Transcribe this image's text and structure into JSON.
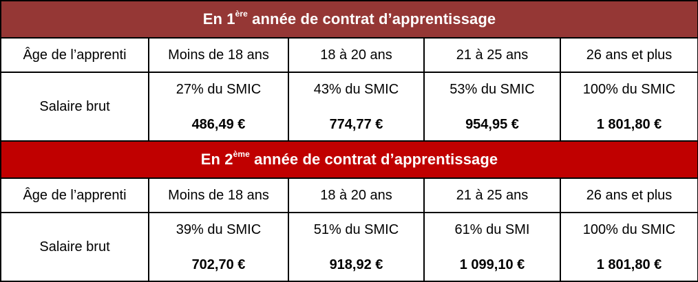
{
  "sections": [
    {
      "title_prefix": "En 1",
      "title_sup": "ère",
      "title_suffix": " année de contrat d’apprentissage",
      "age_label": "Âge de l’apprenti",
      "age_groups": [
        "Moins de 18 ans",
        "18 à 20 ans",
        "21 à 25 ans",
        "26 ans et plus"
      ],
      "salary_label": "Salaire brut",
      "percentages": [
        "27% du SMIC",
        "43% du SMIC",
        "53% du SMIC",
        "100% du SMIC"
      ],
      "amounts": [
        "486,49 €",
        "774,77 €",
        "954,95 €",
        "1 801,80 €"
      ]
    },
    {
      "title_prefix": "En 2",
      "title_sup": "ème",
      "title_suffix": " année de contrat d’apprentissage",
      "age_label": "Âge de l’apprenti",
      "age_groups": [
        "Moins de 18 ans",
        "18 à 20 ans",
        "21 à 25 ans",
        "26 ans et plus"
      ],
      "salary_label": "Salaire brut",
      "percentages": [
        "39% du SMIC",
        "51% du SMIC",
        "61% du SMI",
        "100% du SMIC"
      ],
      "amounts": [
        "702,70 €",
        "918,92 €",
        "1 099,10 €",
        "1 801,80 €"
      ]
    }
  ],
  "colors": {
    "header_year_1": "#953735",
    "header_year_2": "#c00000"
  }
}
